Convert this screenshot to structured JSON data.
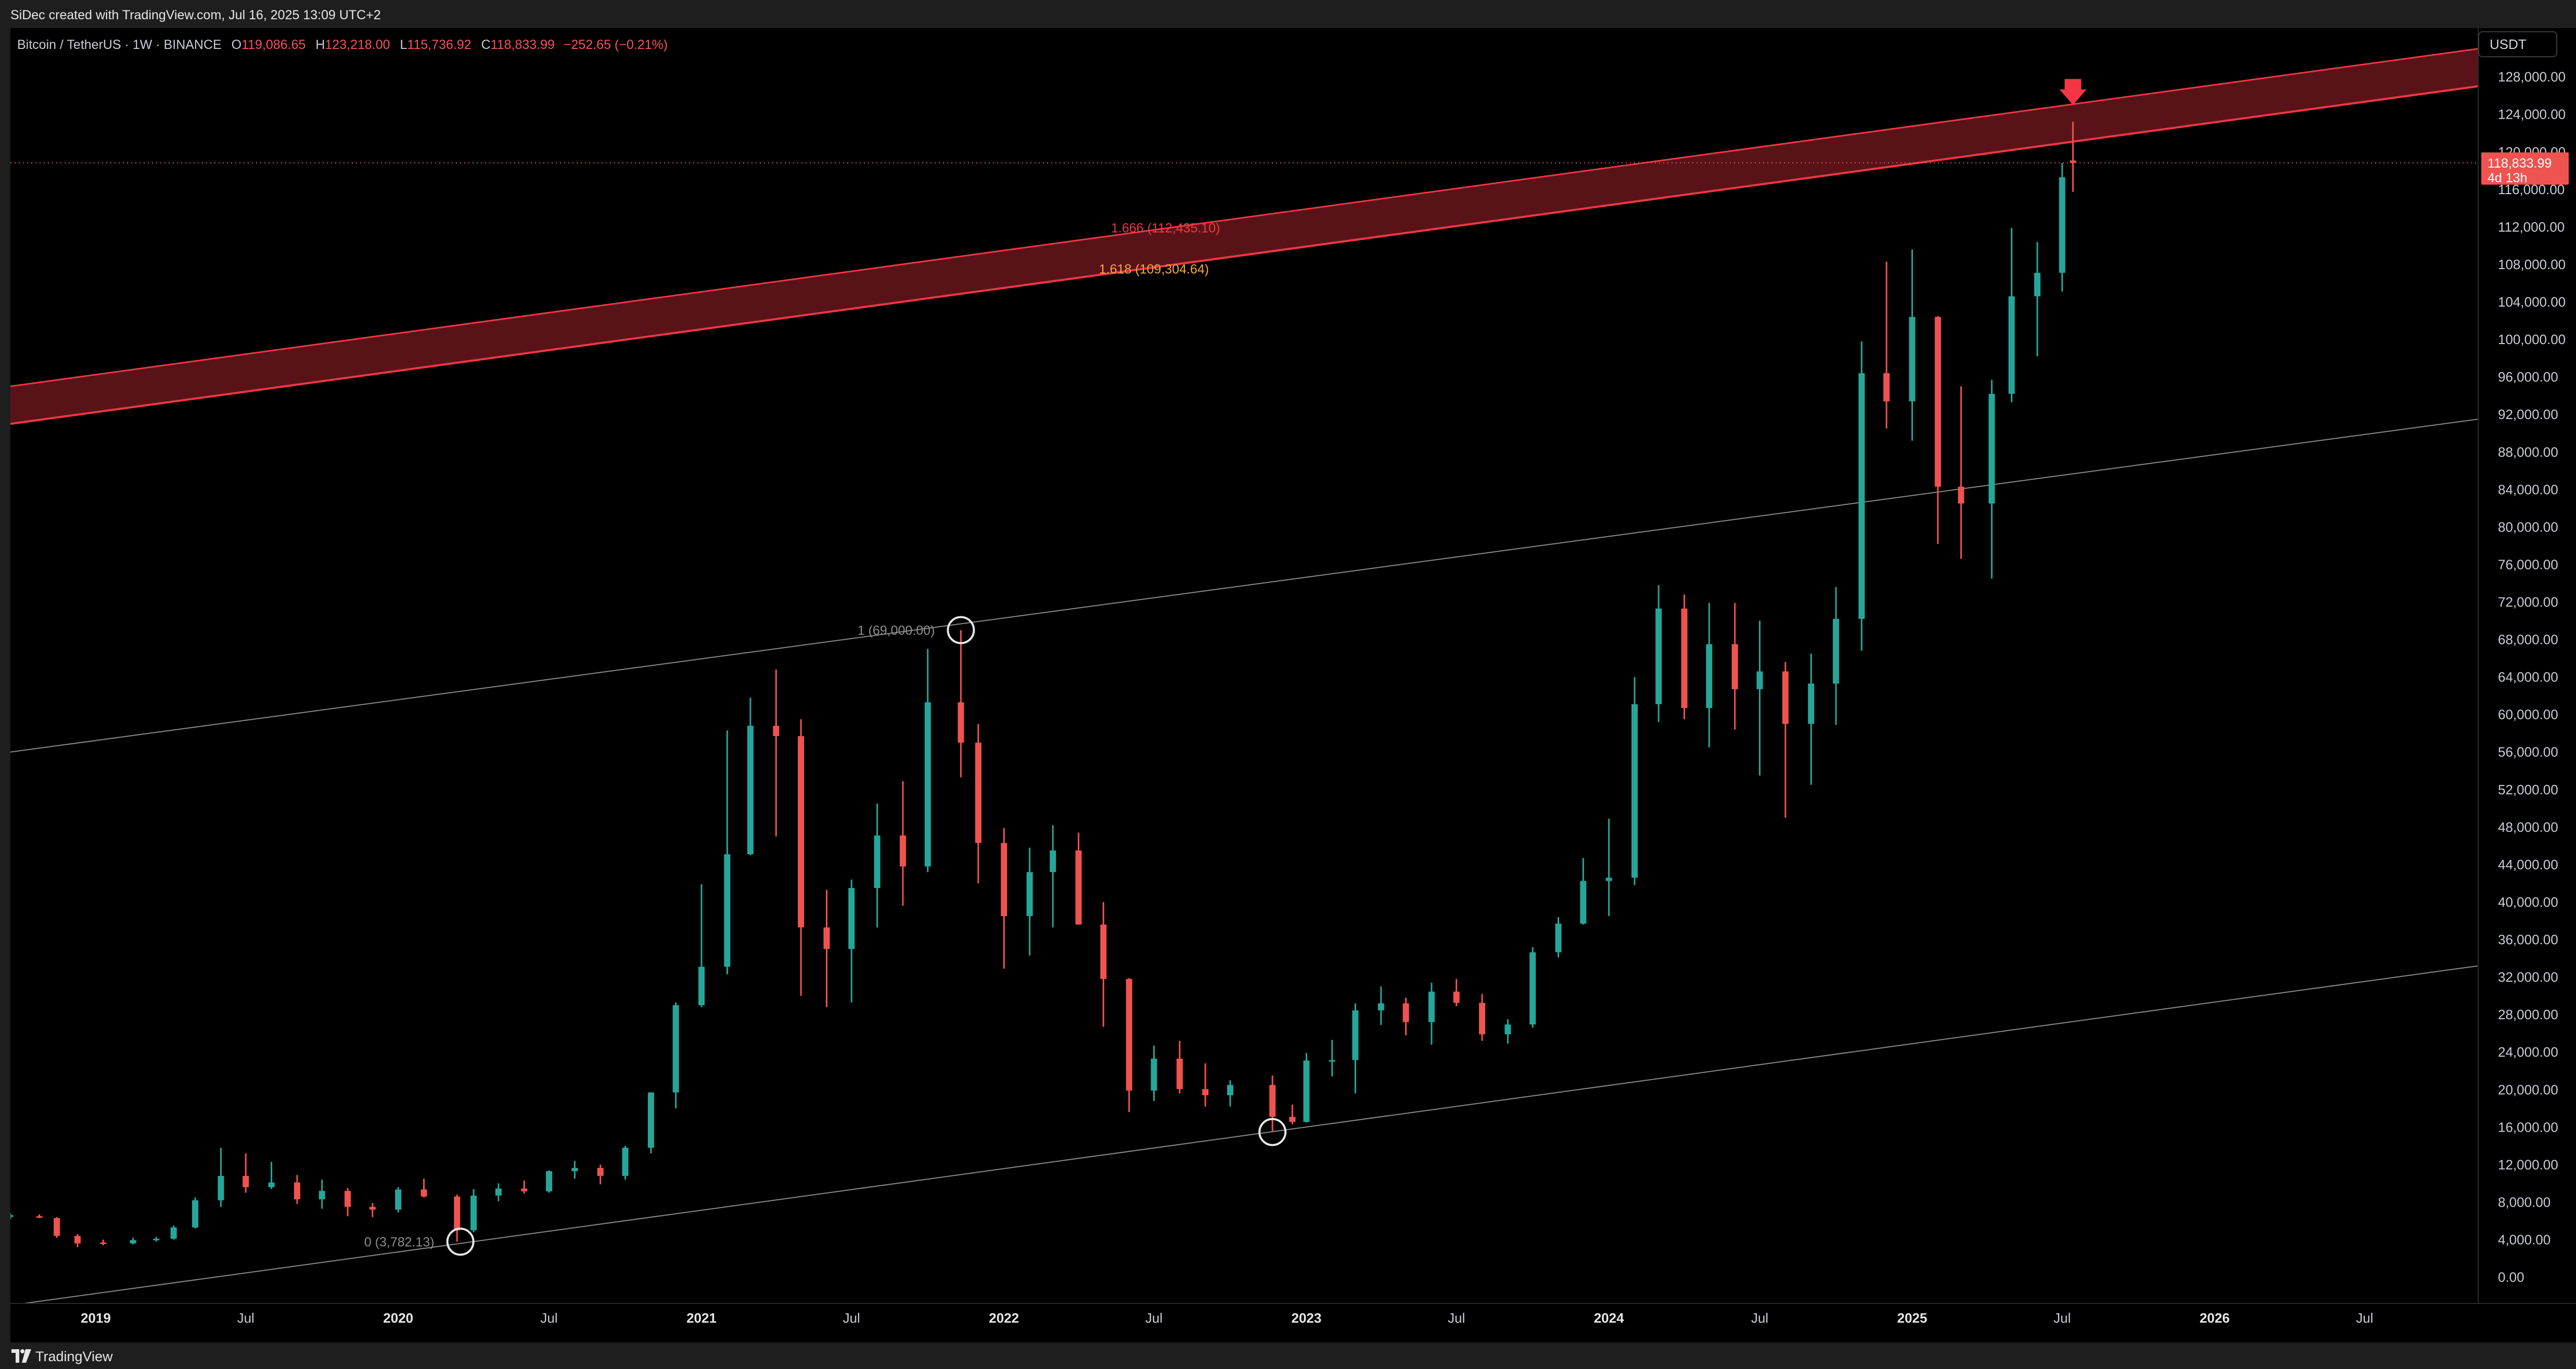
{
  "header": {
    "attribution": "SiDec created with TradingView.com, Jul 16, 2025 13:09 UTC+2"
  },
  "legend": {
    "symbol": "Bitcoin / TetherUS · 1W · BINANCE",
    "open_label": "O",
    "open": "119,086.65",
    "high_label": "H",
    "high": "123,218.00",
    "low_label": "L",
    "low": "115,736.92",
    "close_label": "C",
    "close": "118,833.99",
    "change": "−252.65 (−0.21%)"
  },
  "price_scale": {
    "currency": "USDT",
    "last_price": "118,833.99",
    "countdown": "4d 13h"
  },
  "footer": {
    "brand": "TradingView"
  },
  "colors": {
    "up": "#26a69a",
    "down": "#ef5350",
    "band": "#f23645",
    "band_fill": "#5e1419",
    "fib_mid": "#f5a742"
  },
  "chart_data": {
    "type": "candlestick",
    "timeframe": "1W",
    "x_range": [
      "2018-09-20",
      "2026-11-15"
    ],
    "ylim": [
      -2800,
      133200
    ],
    "y_ticks": [
      "0.00",
      "4,000.00",
      "8,000.00",
      "12,000.00",
      "16,000.00",
      "20,000.00",
      "24,000.00",
      "28,000.00",
      "32,000.00",
      "36,000.00",
      "40,000.00",
      "44,000.00",
      "48,000.00",
      "52,000.00",
      "56,000.00",
      "60,000.00",
      "64,000.00",
      "68,000.00",
      "72,000.00",
      "76,000.00",
      "80,000.00",
      "84,000.00",
      "88,000.00",
      "92,000.00",
      "96,000.00",
      "100,000.00",
      "104,000.00",
      "108,000.00",
      "112,000.00",
      "116,000.00",
      "120,000.00",
      "124,000.00",
      "128,000.00"
    ],
    "x_ticks": [
      {
        "label": "2019",
        "date": "2019-01-01",
        "bold": true
      },
      {
        "label": "Jul",
        "date": "2019-07-01",
        "bold": false
      },
      {
        "label": "2020",
        "date": "2020-01-01",
        "bold": true
      },
      {
        "label": "Jul",
        "date": "2020-07-01",
        "bold": false
      },
      {
        "label": "2021",
        "date": "2021-01-01",
        "bold": true
      },
      {
        "label": "Jul",
        "date": "2021-07-01",
        "bold": false
      },
      {
        "label": "2022",
        "date": "2022-01-01",
        "bold": true
      },
      {
        "label": "Jul",
        "date": "2022-07-01",
        "bold": false
      },
      {
        "label": "2023",
        "date": "2023-01-01",
        "bold": true
      },
      {
        "label": "Jul",
        "date": "2023-07-01",
        "bold": false
      },
      {
        "label": "2024",
        "date": "2024-01-01",
        "bold": true
      },
      {
        "label": "Jul",
        "date": "2024-07-01",
        "bold": false
      },
      {
        "label": "2025",
        "date": "2025-01-01",
        "bold": true
      },
      {
        "label": "Jul",
        "date": "2025-07-01",
        "bold": false
      },
      {
        "label": "2026",
        "date": "2026-01-01",
        "bold": true
      },
      {
        "label": "Jul",
        "date": "2026-07-01",
        "bold": false
      }
    ],
    "candles": [
      [
        "2018-09-20",
        6500,
        6800,
        6200,
        6600
      ],
      [
        "2018-10-25",
        6500,
        6700,
        6300,
        6400
      ],
      [
        "2018-11-15",
        6300,
        6400,
        4200,
        4400
      ],
      [
        "2018-12-10",
        4400,
        4600,
        3200,
        3600
      ],
      [
        "2019-01-10",
        3700,
        4000,
        3400,
        3600
      ],
      [
        "2019-02-15",
        3600,
        4200,
        3500,
        3950
      ],
      [
        "2019-03-15",
        3950,
        4300,
        3800,
        4100
      ],
      [
        "2019-04-05",
        4100,
        5500,
        4000,
        5300
      ],
      [
        "2019-05-01",
        5300,
        8500,
        5200,
        8200
      ],
      [
        "2019-06-01",
        8200,
        13800,
        7500,
        10800
      ],
      [
        "2019-07-01",
        10800,
        13200,
        9000,
        9600
      ],
      [
        "2019-08-01",
        9600,
        12300,
        9400,
        10100
      ],
      [
        "2019-09-01",
        10100,
        10900,
        7800,
        8300
      ],
      [
        "2019-10-01",
        8300,
        10400,
        7300,
        9200
      ],
      [
        "2019-11-01",
        9200,
        9500,
        6500,
        7500
      ],
      [
        "2019-12-01",
        7500,
        7900,
        6400,
        7200
      ],
      [
        "2020-01-01",
        7200,
        9600,
        6900,
        9350
      ],
      [
        "2020-02-01",
        9350,
        10500,
        8500,
        8600
      ],
      [
        "2020-03-12",
        8600,
        8800,
        3782,
        5000
      ],
      [
        "2020-04-01",
        5000,
        9400,
        4800,
        8700
      ],
      [
        "2020-05-01",
        8700,
        10000,
        8100,
        9450
      ],
      [
        "2020-06-01",
        9450,
        10300,
        8900,
        9150
      ],
      [
        "2020-07-01",
        9150,
        11400,
        9000,
        11300
      ],
      [
        "2020-08-01",
        11300,
        12400,
        10500,
        11650
      ],
      [
        "2020-09-01",
        11650,
        12000,
        9900,
        10800
      ],
      [
        "2020-10-01",
        10800,
        14000,
        10400,
        13800
      ],
      [
        "2020-11-01",
        13800,
        19400,
        13200,
        19700
      ],
      [
        "2020-12-01",
        19700,
        29300,
        18000,
        29000
      ],
      [
        "2021-01-01",
        29000,
        41900,
        28800,
        33100
      ],
      [
        "2021-02-01",
        33100,
        58300,
        32300,
        45100
      ],
      [
        "2021-03-01",
        45100,
        61800,
        45000,
        58800
      ],
      [
        "2021-04-01",
        58800,
        64800,
        47000,
        57700
      ],
      [
        "2021-05-01",
        57700,
        59500,
        30000,
        37300
      ],
      [
        "2021-06-01",
        37300,
        41300,
        28800,
        35000
      ],
      [
        "2021-07-01",
        35000,
        42400,
        29300,
        41500
      ],
      [
        "2021-08-01",
        41500,
        50500,
        37300,
        47100
      ],
      [
        "2021-09-01",
        47100,
        52900,
        39600,
        43800
      ],
      [
        "2021-10-01",
        43800,
        67000,
        43200,
        61300
      ],
      [
        "2021-11-10",
        61300,
        69000,
        53300,
        57000
      ],
      [
        "2021-12-01",
        57000,
        59000,
        42000,
        46300
      ],
      [
        "2022-01-01",
        46300,
        47900,
        32900,
        38500
      ],
      [
        "2022-02-01",
        38500,
        45800,
        34300,
        43200
      ],
      [
        "2022-03-01",
        43200,
        48200,
        37300,
        45500
      ],
      [
        "2022-04-01",
        45500,
        47400,
        37700,
        37600
      ],
      [
        "2022-05-01",
        37600,
        40000,
        26700,
        31800
      ],
      [
        "2022-06-01",
        31800,
        31900,
        17600,
        19900
      ],
      [
        "2022-07-01",
        19900,
        24700,
        18800,
        23300
      ],
      [
        "2022-08-01",
        23300,
        25200,
        19600,
        20050
      ],
      [
        "2022-09-01",
        20050,
        22800,
        18200,
        19400
      ],
      [
        "2022-10-01",
        19400,
        21000,
        18200,
        20500
      ],
      [
        "2022-11-21",
        20500,
        21500,
        15476,
        17100
      ],
      [
        "2022-12-15",
        17100,
        18400,
        16300,
        16550
      ],
      [
        "2023-01-01",
        16550,
        23900,
        16500,
        23100
      ],
      [
        "2023-02-01",
        23100,
        25300,
        21400,
        23150
      ],
      [
        "2023-03-01",
        23150,
        29200,
        19600,
        28450
      ],
      [
        "2023-04-01",
        28450,
        31000,
        26900,
        29200
      ],
      [
        "2023-05-01",
        29200,
        29800,
        25800,
        27200
      ],
      [
        "2023-06-01",
        27200,
        31400,
        24800,
        30450
      ],
      [
        "2023-07-01",
        30450,
        31800,
        28900,
        29250
      ],
      [
        "2023-08-01",
        29250,
        30200,
        25200,
        25900
      ],
      [
        "2023-09-01",
        25900,
        27500,
        24900,
        26950
      ],
      [
        "2023-10-01",
        26950,
        35200,
        26600,
        34650
      ],
      [
        "2023-11-01",
        34650,
        38400,
        34100,
        37700
      ],
      [
        "2023-12-01",
        37700,
        44700,
        37600,
        42250
      ],
      [
        "2024-01-01",
        42250,
        48900,
        38500,
        42600
      ],
      [
        "2024-02-01",
        42600,
        64000,
        41800,
        61100
      ],
      [
        "2024-03-01",
        61100,
        73800,
        59200,
        71300
      ],
      [
        "2024-04-01",
        71300,
        72800,
        59500,
        60700
      ],
      [
        "2024-05-01",
        60700,
        71900,
        56500,
        67500
      ],
      [
        "2024-06-01",
        67500,
        71900,
        58400,
        62700
      ],
      [
        "2024-07-01",
        62700,
        70000,
        53500,
        64600
      ],
      [
        "2024-08-01",
        64600,
        65600,
        49000,
        59000
      ],
      [
        "2024-09-01",
        59000,
        66500,
        52500,
        63300
      ],
      [
        "2024-10-01",
        63300,
        73600,
        58900,
        70200
      ],
      [
        "2024-11-01",
        70200,
        99800,
        66800,
        96400
      ],
      [
        "2024-12-01",
        96400,
        108300,
        90500,
        93400
      ],
      [
        "2025-01-01",
        93400,
        109600,
        89200,
        102400
      ],
      [
        "2025-02-01",
        102400,
        102500,
        78200,
        84300
      ],
      [
        "2025-03-01",
        84300,
        95000,
        76600,
        82500
      ],
      [
        "2025-04-07",
        82500,
        95700,
        74500,
        94200
      ],
      [
        "2025-05-01",
        94200,
        111900,
        93300,
        104600
      ],
      [
        "2025-06-01",
        104600,
        110400,
        98200,
        107100
      ],
      [
        "2025-07-01",
        107100,
        118800,
        105100,
        117300
      ],
      [
        "2025-07-14",
        119086.65,
        123218,
        115736.92,
        118833.99
      ]
    ],
    "fib_anchors": [
      {
        "label": "0 (3,782.13)",
        "date": "2020-03-16",
        "price": 3782.13
      },
      {
        "label": "1 (69,000.00)",
        "date": "2021-11-10",
        "price": 69000
      }
    ],
    "fib_levels": [
      {
        "label": "1.666 (112,435.10)",
        "color": "#f23645",
        "date": "2022-07-15"
      },
      {
        "label": "1.618 (109,304.64)",
        "color": "#f5a742",
        "date": "2022-07-01"
      }
    ],
    "channel_lines": [
      {
        "name": "lower",
        "p1": [
          "2018-09-20",
          -3000
        ],
        "p2": [
          "2026-11-15",
          33200
        ]
      },
      {
        "name": "middle",
        "p1": [
          "2018-09-20",
          56000
        ],
        "p2": [
          "2026-11-15",
          91500
        ]
      },
      {
        "name": "band_lower",
        "p1": [
          "2018-09-20",
          91000
        ],
        "p2": [
          "2026-11-15",
          127000
        ]
      },
      {
        "name": "band_upper",
        "p1": [
          "2018-09-20",
          95000
        ],
        "p2": [
          "2026-11-15",
          131000
        ]
      }
    ],
    "markers": [
      {
        "type": "circle",
        "date": "2020-03-16",
        "price": 3782.13
      },
      {
        "type": "circle",
        "date": "2021-11-10",
        "price": 69000
      },
      {
        "type": "circle",
        "date": "2022-11-21",
        "price": 15476
      },
      {
        "type": "down-arrow",
        "date": "2025-07-14",
        "price": 125000
      }
    ]
  }
}
